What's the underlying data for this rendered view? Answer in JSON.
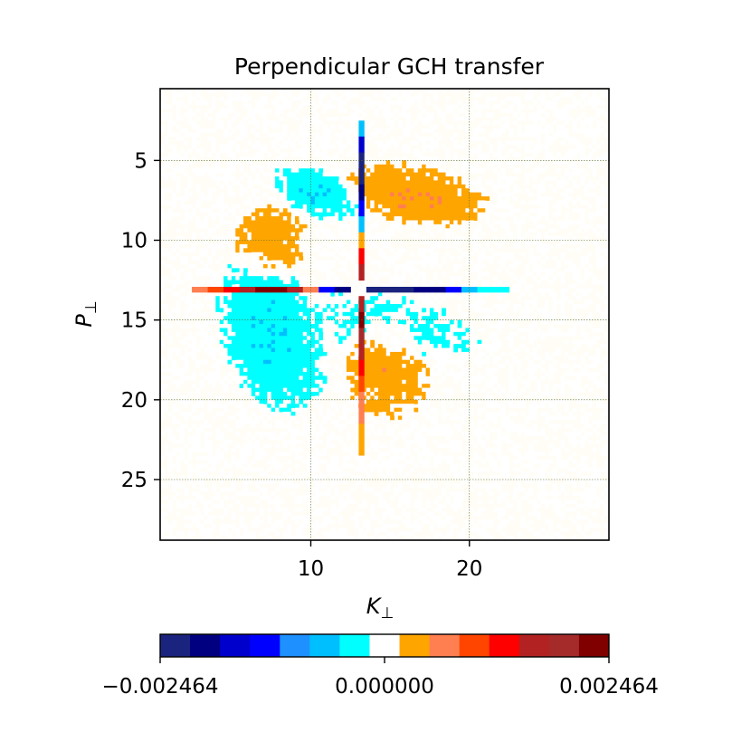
{
  "chart_data": {
    "type": "heatmap",
    "title": "Perpendicular GCH transfer",
    "xlabel": "K",
    "xlabel_sub": "⊥",
    "ylabel": "P",
    "ylabel_sub": "⊥",
    "x_range": [
      0.5,
      28.8
    ],
    "y_range": [
      0.5,
      28.8
    ],
    "y_inverted": true,
    "x_ticks": [
      10,
      20
    ],
    "y_ticks": [
      5,
      10,
      15,
      20,
      25
    ],
    "grid": true,
    "center": [
      13.2,
      13.1
    ],
    "value_range": [
      -0.002464,
      0.002464
    ],
    "colorbar": {
      "orientation": "horizontal",
      "ticks": [
        "−0.002464",
        "0.000000",
        "0.002464"
      ],
      "colors": [
        "#1a237e",
        "#000080",
        "#0000cd",
        "#0000ff",
        "#1e90ff",
        "#00bfff",
        "#00ffff",
        "#ffffff",
        "#ffa500",
        "#ff7f50",
        "#ff4500",
        "#ff0000",
        "#b22222",
        "#a52a2a",
        "#800000"
      ]
    },
    "regions": [
      {
        "cx": 16.5,
        "cy": 7.2,
        "rx": 5.0,
        "ry": 2.0,
        "value": 0.00035,
        "rot": 0.18
      },
      {
        "cx": 10.5,
        "cy": 7.0,
        "rx": 3.2,
        "ry": 1.6,
        "value": -0.00035,
        "rot": 0.35
      },
      {
        "cx": 7.5,
        "cy": 16.0,
        "rx": 3.3,
        "ry": 5.5,
        "value": -0.00035,
        "rot": -0.35
      },
      {
        "cx": 15.5,
        "cy": 15.5,
        "rx": 6.0,
        "ry": 2.3,
        "value": -0.0002,
        "rot": 0.2
      },
      {
        "cx": 14.8,
        "cy": 18.0,
        "rx": 3.0,
        "ry": 3.5,
        "value": 0.0003,
        "rot": 0.0
      },
      {
        "cx": 7.5,
        "cy": 10.0,
        "rx": 2.5,
        "ry": 2.5,
        "value": 0.00028,
        "rot": 0.0
      }
    ],
    "cross_horizontal": [
      {
        "k": 3.0,
        "value": 0.0005
      },
      {
        "k": 4.0,
        "value": 0.0009
      },
      {
        "k": 5.0,
        "value": 0.0012
      },
      {
        "k": 6.0,
        "value": 0.0018
      },
      {
        "k": 7.0,
        "value": 0.0022
      },
      {
        "k": 8.0,
        "value": 0.0024
      },
      {
        "k": 9.0,
        "value": 0.0017
      },
      {
        "k": 10.0,
        "value": 0.0006
      },
      {
        "k": 11.0,
        "value": -0.0012
      },
      {
        "k": 12.0,
        "value": -0.002
      },
      {
        "k": 14.0,
        "value": -0.0022
      },
      {
        "k": 15.0,
        "value": -0.0022
      },
      {
        "k": 16.0,
        "value": -0.0022
      },
      {
        "k": 17.0,
        "value": -0.0021
      },
      {
        "k": 18.0,
        "value": -0.002
      },
      {
        "k": 19.0,
        "value": -0.0013
      },
      {
        "k": 20.0,
        "value": -0.0007
      },
      {
        "k": 21.0,
        "value": -0.0004
      },
      {
        "k": 22.0,
        "value": -0.0003
      }
    ],
    "cross_vertical": [
      {
        "p": 3.0,
        "value": -0.0008
      },
      {
        "p": 4.0,
        "value": -0.0016
      },
      {
        "p": 5.0,
        "value": -0.0022
      },
      {
        "p": 6.0,
        "value": -0.0022
      },
      {
        "p": 7.0,
        "value": -0.0019
      },
      {
        "p": 8.0,
        "value": -0.0014
      },
      {
        "p": 9.0,
        "value": -0.0008
      },
      {
        "p": 10.0,
        "value": 0.0004
      },
      {
        "p": 11.0,
        "value": 0.0012
      },
      {
        "p": 12.0,
        "value": 0.0016
      },
      {
        "p": 14.0,
        "value": 0.0018
      },
      {
        "p": 15.0,
        "value": 0.0022
      },
      {
        "p": 16.0,
        "value": 0.0021
      },
      {
        "p": 17.0,
        "value": 0.0018
      },
      {
        "p": 18.0,
        "value": 0.0014
      },
      {
        "p": 19.0,
        "value": 0.0011
      },
      {
        "p": 20.0,
        "value": 0.0008
      },
      {
        "p": 21.0,
        "value": 0.0005
      },
      {
        "p": 22.0,
        "value": 0.0003
      },
      {
        "p": 23.0,
        "value": 0.0002
      },
      {
        "p": 24.0,
        "value": 0.0001
      }
    ]
  }
}
